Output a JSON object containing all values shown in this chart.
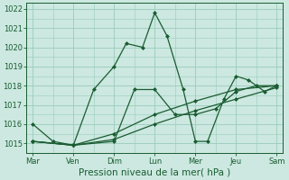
{
  "xlabel": "Pression niveau de la mer( hPa )",
  "bg_color": "#cce8e0",
  "grid_color": "#99ccbb",
  "line_color": "#1a5c32",
  "ylim": [
    1014.5,
    1022.3
  ],
  "yticks": [
    1015,
    1016,
    1017,
    1018,
    1019,
    1020,
    1021,
    1022
  ],
  "xtick_labels": [
    "Mar",
    "Ven",
    "Dim",
    "Lun",
    "Mer",
    "Jeu",
    "Sam"
  ],
  "xtick_positions": [
    0,
    1,
    2,
    3,
    4,
    5,
    6
  ],
  "series": [
    {
      "x": [
        0,
        0.5,
        1.0,
        1.5,
        2.0,
        2.3,
        2.7,
        3.0,
        3.3,
        3.7,
        4.0,
        4.3,
        4.7,
        5.0,
        5.3,
        5.7,
        6.0
      ],
      "y": [
        1016.0,
        1015.1,
        1014.9,
        1017.8,
        1019.0,
        1020.2,
        1020.0,
        1021.8,
        1020.6,
        1017.8,
        1015.1,
        1015.1,
        1017.3,
        1018.5,
        1018.3,
        1017.7,
        1018.0
      ]
    },
    {
      "x": [
        0,
        1.0,
        2.0,
        2.5,
        3.0,
        3.5,
        4.0,
        4.5,
        5.0,
        5.5,
        6.0
      ],
      "y": [
        1015.1,
        1014.9,
        1015.1,
        1017.8,
        1017.8,
        1016.5,
        1016.5,
        1016.8,
        1017.7,
        1018.0,
        1018.0
      ]
    },
    {
      "x": [
        0,
        1.0,
        2.0,
        3.0,
        4.0,
        5.0,
        6.0
      ],
      "y": [
        1015.1,
        1014.9,
        1015.5,
        1016.5,
        1017.2,
        1017.8,
        1018.0
      ]
    },
    {
      "x": [
        0,
        1.0,
        2.0,
        3.0,
        4.0,
        5.0,
        6.0
      ],
      "y": [
        1015.1,
        1014.9,
        1015.2,
        1016.0,
        1016.7,
        1017.3,
        1017.9
      ]
    }
  ],
  "marker": "D",
  "markersize": 2.0,
  "linewidth": 0.9,
  "tick_fontsize": 6,
  "label_fontsize": 7.5
}
